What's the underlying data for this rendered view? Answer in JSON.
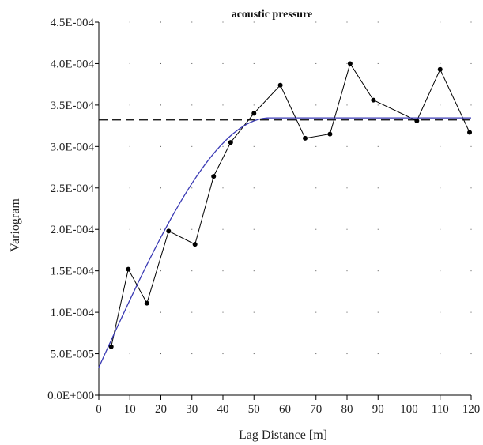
{
  "chart_data": {
    "type": "line",
    "title": "acoustic pressure",
    "xlabel": "Lag Distance [m]",
    "ylabel": "Variogram",
    "xlim": [
      0,
      120
    ],
    "ylim": [
      0,
      0.00045
    ],
    "x_ticks": [
      0,
      10,
      20,
      30,
      40,
      50,
      60,
      70,
      80,
      90,
      100,
      110,
      120
    ],
    "x_tick_labels": [
      "0",
      "10",
      "20",
      "30",
      "40",
      "50",
      "60",
      "70",
      "80",
      "90",
      "100",
      "110",
      "120"
    ],
    "y_ticks": [
      0,
      5e-05,
      0.0001,
      0.00015,
      0.0002,
      0.00025,
      0.0003,
      0.00035,
      0.0004,
      0.00045
    ],
    "y_tick_labels": [
      "0.0E+000",
      "5.0E-005",
      "1.0E-004",
      "1.5E-004",
      "2.0E-004",
      "2.5E-004",
      "3.0E-004",
      "3.5E-004",
      "4.0E-004",
      "4.5E-004"
    ],
    "grid": "dotted points at tick intersections",
    "series": [
      {
        "kind": "experimental",
        "style": "black line with dot markers",
        "color": "#000000",
        "x": [
          4,
          9.5,
          15.5,
          22.5,
          31,
          37,
          42.5,
          50,
          58.5,
          66.5,
          74.5,
          81,
          88.5,
          102.5,
          110,
          119.5
        ],
        "y": [
          5.85e-05,
          0.000152,
          0.000111,
          0.000198,
          0.000182,
          0.000264,
          0.000305,
          0.00034,
          0.000374,
          0.00031,
          0.000315,
          0.0004,
          0.000356,
          0.000331,
          0.000393,
          0.000317
        ]
      },
      {
        "kind": "model",
        "style": "blue smooth curve",
        "color": "#3a3ab4",
        "nugget": 3.35e-05,
        "sill": 0.0003345,
        "range": 55,
        "xmax": 120
      },
      {
        "kind": "sill",
        "style": "dashed black horizontal line",
        "color": "#000000",
        "y": 0.000332
      }
    ]
  }
}
